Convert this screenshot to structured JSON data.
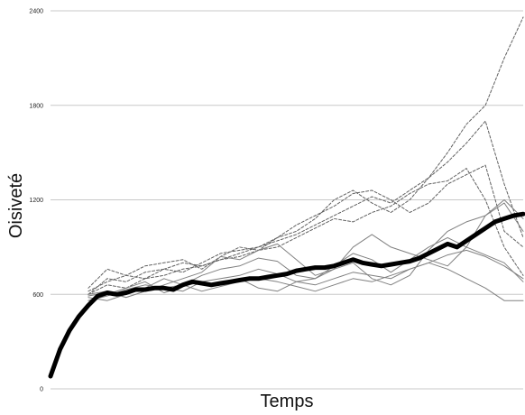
{
  "chart_data": {
    "type": "line",
    "title": "",
    "xlabel": "Temps",
    "ylabel": "Oisiveté",
    "ylim": [
      0,
      2400
    ],
    "xlim": [
      0,
      100
    ],
    "yticks": [
      {
        "value": 0,
        "label": "0"
      },
      {
        "value": 600,
        "label": "600"
      },
      {
        "value": 1200,
        "label": "1200"
      },
      {
        "value": 1800,
        "label": "1800"
      },
      {
        "value": 2400,
        "label": "2400"
      }
    ],
    "grid": true,
    "colors": {
      "mean": "#000000",
      "solid": "#808080",
      "dashed": "#606060",
      "grid": "#c8c8c8"
    },
    "mean": {
      "x": [
        0,
        2,
        4,
        6,
        8,
        10,
        12,
        14,
        16,
        18,
        20,
        22,
        24,
        26,
        28,
        30,
        32,
        34,
        36,
        38,
        40,
        42,
        44,
        46,
        48,
        50,
        52,
        54,
        56,
        58,
        60,
        62,
        64,
        66,
        68,
        70,
        72,
        74,
        76,
        78,
        80,
        82,
        84,
        86,
        88,
        90,
        92,
        94,
        96,
        98,
        100
      ],
      "y": [
        80,
        250,
        370,
        460,
        530,
        590,
        610,
        600,
        610,
        630,
        630,
        640,
        640,
        630,
        660,
        680,
        670,
        660,
        670,
        680,
        690,
        700,
        700,
        710,
        720,
        730,
        750,
        760,
        770,
        770,
        780,
        800,
        820,
        800,
        790,
        780,
        790,
        800,
        810,
        830,
        860,
        890,
        920,
        900,
        940,
        980,
        1020,
        1060,
        1080,
        1100,
        1110
      ]
    },
    "series_solid": [
      {
        "x": [
          8,
          12,
          16,
          20,
          24,
          28,
          32,
          36,
          40,
          44,
          48,
          52,
          56,
          60,
          64,
          68,
          72,
          76,
          80,
          84,
          88,
          92,
          96,
          100
        ],
        "y": [
          560,
          590,
          630,
          660,
          640,
          620,
          680,
          700,
          720,
          760,
          730,
          680,
          660,
          700,
          740,
          720,
          700,
          760,
          800,
          850,
          880,
          840,
          780,
          700
        ]
      },
      {
        "x": [
          8,
          12,
          16,
          20,
          24,
          28,
          32,
          36,
          40,
          44,
          48,
          52,
          56,
          60,
          64,
          68,
          72,
          76,
          80,
          84,
          88,
          92,
          96,
          100
        ],
        "y": [
          580,
          560,
          600,
          640,
          700,
          660,
          720,
          760,
          780,
          830,
          810,
          720,
          700,
          780,
          860,
          820,
          740,
          820,
          900,
          960,
          900,
          850,
          800,
          680
        ]
      },
      {
        "x": [
          8,
          12,
          16,
          20,
          24,
          28,
          32,
          36,
          40,
          44,
          48,
          52,
          56,
          60,
          64,
          68,
          72,
          76,
          80,
          84,
          88,
          92,
          96,
          100
        ],
        "y": [
          600,
          620,
          580,
          620,
          660,
          700,
          740,
          840,
          820,
          880,
          920,
          820,
          720,
          760,
          800,
          700,
          660,
          720,
          880,
          1000,
          1060,
          1100,
          1200,
          1080
        ]
      },
      {
        "x": [
          8,
          12,
          16,
          20,
          24,
          28,
          32,
          36,
          40,
          44,
          48,
          52,
          56,
          60,
          64,
          68,
          72,
          76,
          80,
          84,
          88,
          92,
          96,
          100
        ],
        "y": [
          560,
          600,
          640,
          680,
          610,
          650,
          680,
          660,
          700,
          640,
          620,
          680,
          700,
          760,
          900,
          980,
          900,
          860,
          820,
          780,
          900,
          1100,
          1180,
          1000
        ]
      },
      {
        "x": [
          8,
          12,
          16,
          20,
          24,
          28,
          32,
          36,
          40,
          44,
          48,
          52,
          56,
          60,
          64,
          68,
          72,
          76,
          80,
          84,
          88,
          92,
          96,
          100
        ],
        "y": [
          590,
          610,
          580,
          620,
          640,
          660,
          620,
          650,
          680,
          700,
          680,
          650,
          620,
          660,
          700,
          680,
          720,
          760,
          800,
          760,
          700,
          640,
          560,
          560
        ]
      }
    ],
    "series_dashed": [
      {
        "x": [
          8,
          12,
          16,
          20,
          24,
          28,
          32,
          36,
          40,
          44,
          48,
          52,
          56,
          60,
          64,
          68,
          72,
          76,
          80,
          84,
          88,
          92,
          96,
          100
        ],
        "y": [
          640,
          760,
          720,
          780,
          800,
          820,
          760,
          840,
          900,
          880,
          960,
          1000,
          1080,
          1200,
          1260,
          1180,
          1120,
          1200,
          1340,
          1500,
          1680,
          1800,
          2100,
          2360
        ]
      },
      {
        "x": [
          8,
          12,
          16,
          20,
          24,
          28,
          32,
          36,
          40,
          44,
          48,
          52,
          56,
          60,
          64,
          68,
          72,
          76,
          80,
          84,
          88,
          92,
          96,
          100
        ],
        "y": [
          600,
          700,
          680,
          740,
          760,
          740,
          800,
          860,
          880,
          900,
          940,
          980,
          1040,
          1100,
          1160,
          1220,
          1180,
          1260,
          1340,
          1440,
          1560,
          1700,
          1300,
          960
        ]
      },
      {
        "x": [
          8,
          12,
          16,
          20,
          24,
          28,
          32,
          36,
          40,
          44,
          48,
          52,
          56,
          60,
          64,
          68,
          72,
          76,
          80,
          84,
          88,
          92,
          96,
          100
        ],
        "y": [
          620,
          680,
          720,
          700,
          760,
          800,
          780,
          820,
          860,
          900,
          960,
          1040,
          1100,
          1160,
          1240,
          1260,
          1200,
          1120,
          1180,
          1300,
          1360,
          1420,
          1000,
          900
        ]
      },
      {
        "x": [
          8,
          12,
          16,
          20,
          24,
          28,
          32,
          36,
          40,
          44,
          48,
          52,
          56,
          60,
          64,
          68,
          72,
          76,
          80,
          84,
          88,
          92,
          96,
          100
        ],
        "y": [
          600,
          660,
          640,
          700,
          720,
          760,
          780,
          820,
          840,
          880,
          900,
          960,
          1020,
          1080,
          1060,
          1120,
          1160,
          1240,
          1300,
          1320,
          1400,
          1200,
          900,
          720
        ]
      }
    ]
  }
}
